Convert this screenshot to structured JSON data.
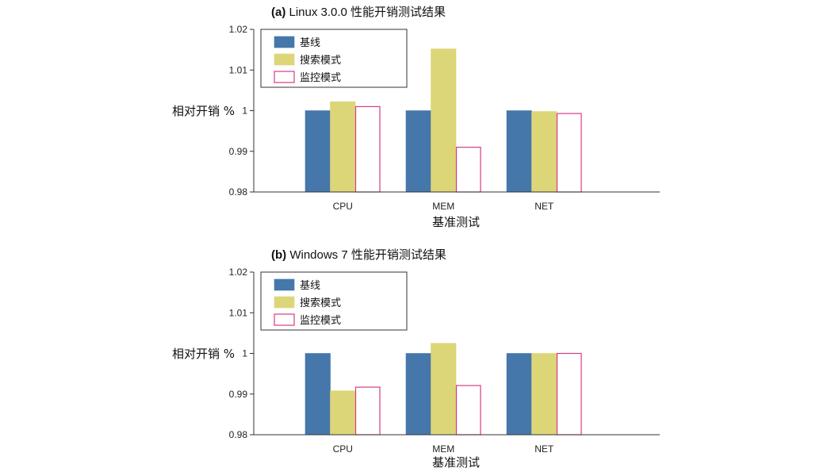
{
  "chart_data": [
    {
      "type": "bar",
      "panel_tag": "(a)",
      "title": "Linux 3.0.0  性能开销测试结果",
      "xlabel": "基准测试",
      "ylabel": "相对开销 %",
      "categories": [
        "CPU",
        "MEM",
        "NET"
      ],
      "ylim": [
        0.98,
        1.02
      ],
      "yticks": [
        "0.98",
        "0.99",
        "1",
        "1.01",
        "1.02"
      ],
      "legend_position": "top-left",
      "series": [
        {
          "name": "基线",
          "values": [
            1.0,
            1.0,
            1.0
          ],
          "fill": "#4577aa",
          "stroke": "#4577aa"
        },
        {
          "name": "搜索模式",
          "values": [
            1.0022,
            1.0152,
            0.9998
          ],
          "fill": "#dcd678",
          "stroke": "#dcd678"
        },
        {
          "name": "监控模式",
          "values": [
            1.001,
            0.991,
            0.9993
          ],
          "fill": "#ffffff",
          "stroke": "#d63c83"
        }
      ]
    },
    {
      "type": "bar",
      "panel_tag": "(b)",
      "title": "Windows 7  性能开销测试结果",
      "xlabel": "基准测试",
      "ylabel": "相对开销 %",
      "categories": [
        "CPU",
        "MEM",
        "NET"
      ],
      "ylim": [
        0.98,
        1.02
      ],
      "yticks": [
        "0.98",
        "0.99",
        "1",
        "1.01",
        "1.02"
      ],
      "legend_position": "top-left",
      "series": [
        {
          "name": "基线",
          "values": [
            1.0,
            1.0,
            1.0
          ],
          "fill": "#4577aa",
          "stroke": "#4577aa"
        },
        {
          "name": "搜索模式",
          "values": [
            0.9908,
            1.0025,
            1.0
          ],
          "fill": "#dcd678",
          "stroke": "#dcd678"
        },
        {
          "name": "监控模式",
          "values": [
            0.9917,
            0.9921,
            1.0
          ],
          "fill": "#ffffff",
          "stroke": "#d63c83"
        }
      ]
    }
  ]
}
